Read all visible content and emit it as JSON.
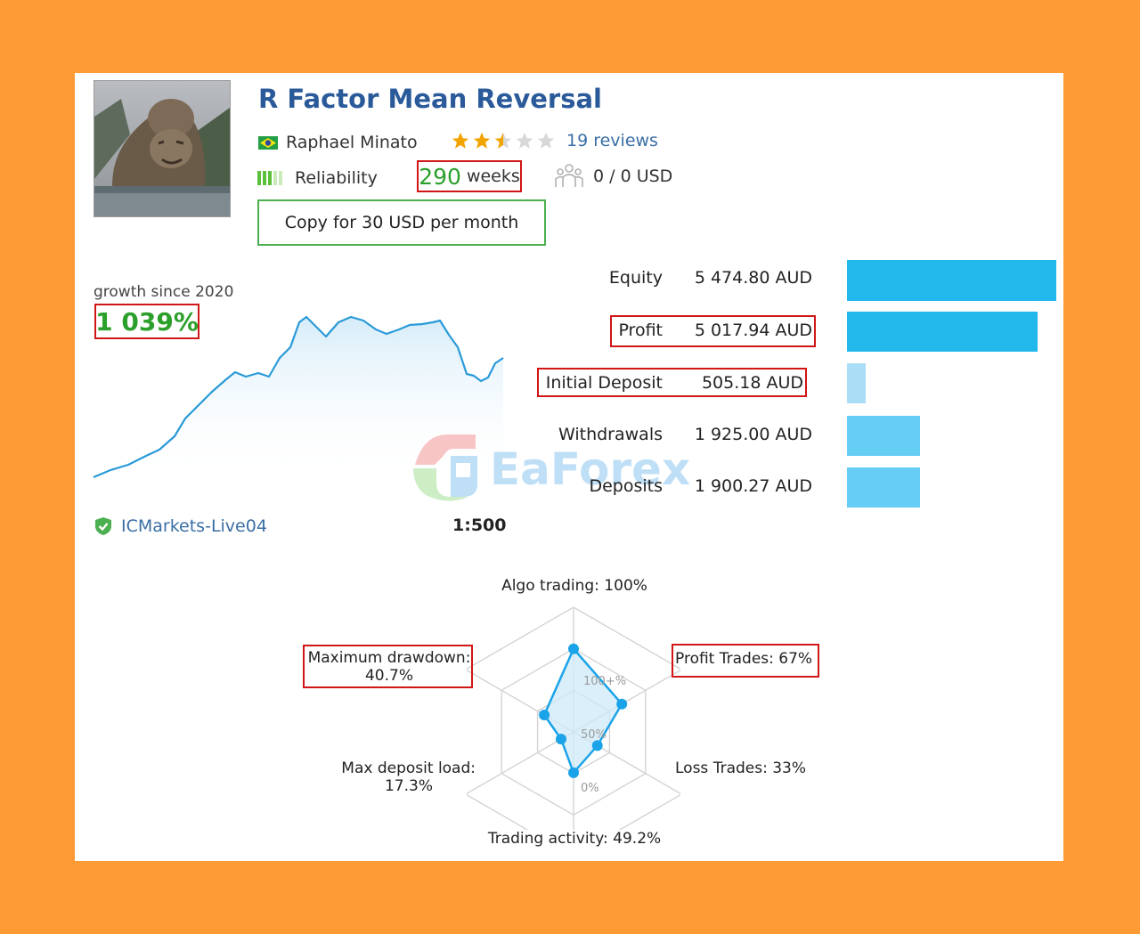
{
  "signal": {
    "title": "R Factor Mean Reversal",
    "author": "Raphael Minato",
    "rating": 2.5,
    "reviews": "19 reviews",
    "reliability_label": "Reliability",
    "weeks_value": "290",
    "weeks_unit": "weeks",
    "subscribers": "0 / 0 USD",
    "copy_button": "Copy for 30 USD per month"
  },
  "growth": {
    "label": "growth since 2020",
    "value": "1 039%",
    "server": "ICMarkets-Live04",
    "leverage": "1:500"
  },
  "stats": [
    {
      "label": "Equity",
      "value": "5 474.80 AUD",
      "fraction": 1.0,
      "color": "#22b8ec",
      "highlight": false
    },
    {
      "label": "Profit",
      "value": "5 017.94 AUD",
      "fraction": 0.91,
      "color": "#22b8ec",
      "highlight": true
    },
    {
      "label": "Initial Deposit",
      "value": "505.18 AUD",
      "fraction": 0.09,
      "color": "#a9def6",
      "highlight": true
    },
    {
      "label": "Withdrawals",
      "value": "1 925.00 AUD",
      "fraction": 0.35,
      "color": "#66cdf4",
      "highlight": false
    },
    {
      "label": "Deposits",
      "value": "1 900.27 AUD",
      "fraction": 0.35,
      "color": "#66cdf4",
      "highlight": false
    }
  ],
  "radar": {
    "scale_labels": [
      "100+%",
      "50%",
      "0%"
    ],
    "axes": {
      "algo": {
        "label": "Algo trading: 100%",
        "value": 100
      },
      "profit": {
        "label": "Profit Trades: 67%",
        "value": 67
      },
      "loss": {
        "label": "Loss Trades: 33%",
        "value": 33
      },
      "activity": {
        "label": "Trading activity: 49.2%",
        "value": 49.2
      },
      "load_line1": "Max deposit load:",
      "load_line2": "17.3%",
      "load_value": 17.3,
      "drawdown_line1": "Maximum drawdown:",
      "drawdown_line2": "40.7%",
      "drawdown_value": 40.7
    }
  },
  "watermark": "EaForex",
  "colors": {
    "background": "#FF9B35",
    "title": "#2a5a9a",
    "link": "#3a6ea5",
    "green": "#2aa02a",
    "highlight_box": "#d01616",
    "chart_line": "#2a9ad8",
    "bar": "#22b8ec"
  },
  "icons": {
    "flag": "brazil-flag-icon",
    "subscribers": "subscribers-icon",
    "verified": "shield-check-icon"
  }
}
